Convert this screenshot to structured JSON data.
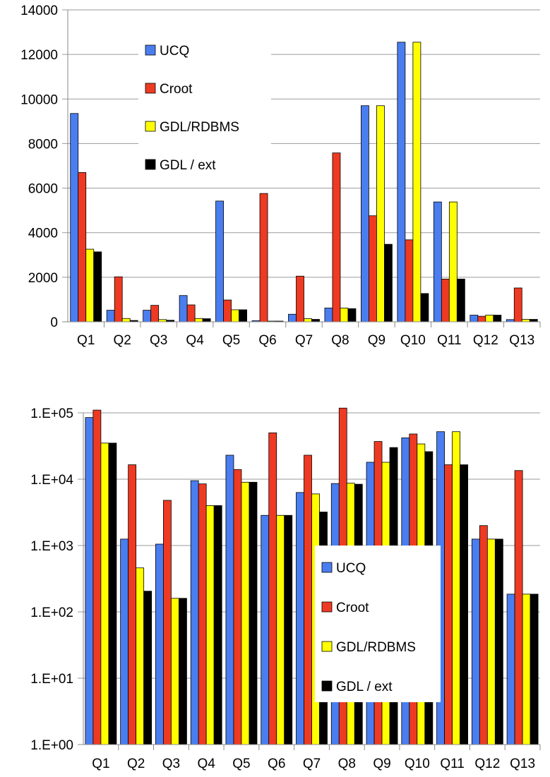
{
  "chart_data": [
    {
      "type": "bar",
      "scale": "linear",
      "categories": [
        "Q1",
        "Q2",
        "Q3",
        "Q4",
        "Q5",
        "Q6",
        "Q7",
        "Q8",
        "Q9",
        "Q10",
        "Q11",
        "Q12",
        "Q13"
      ],
      "series": [
        {
          "name": "UCQ",
          "color": "#4a7ef0",
          "values": [
            9350,
            520,
            520,
            1180,
            5420,
            50,
            340,
            620,
            9700,
            12550,
            5380,
            300,
            100
          ]
        },
        {
          "name": "Croot",
          "color": "#ee3a22",
          "values": [
            6700,
            2020,
            740,
            760,
            980,
            5760,
            2050,
            7580,
            4760,
            3680,
            1920,
            250,
            1520
          ]
        },
        {
          "name": "GDL/RDBMS",
          "color": "#ffff00",
          "values": [
            3260,
            150,
            100,
            150,
            540,
            30,
            140,
            620,
            9700,
            12550,
            5380,
            300,
            110
          ]
        },
        {
          "name": "GDL / ext",
          "color": "#000000",
          "values": [
            3140,
            60,
            70,
            140,
            540,
            30,
            110,
            590,
            3480,
            1270,
            1920,
            300,
            110
          ]
        }
      ],
      "ylim": [
        0,
        14000
      ],
      "yticks": [
        "0",
        "2000",
        "4000",
        "6000",
        "8000",
        "10000",
        "12000",
        "14000"
      ],
      "grid": true,
      "legend_position": "top-left"
    },
    {
      "type": "bar",
      "scale": "log",
      "categories": [
        "Q1",
        "Q2",
        "Q3",
        "Q4",
        "Q5",
        "Q6",
        "Q7",
        "Q8",
        "Q9",
        "Q10",
        "Q11",
        "Q12",
        "Q13"
      ],
      "series": [
        {
          "name": "UCQ",
          "color": "#4a7ef0",
          "values": [
            85000,
            1250,
            1050,
            9500,
            23000,
            2850,
            6300,
            8600,
            18000,
            42000,
            52000,
            1250,
            185
          ]
        },
        {
          "name": "Croot",
          "color": "#ee3a22",
          "values": [
            110000,
            16500,
            4800,
            8500,
            14000,
            50000,
            23000,
            118000,
            37000,
            48000,
            16500,
            2000,
            13500
          ]
        },
        {
          "name": "GDL/RDBMS",
          "color": "#ffff00",
          "values": [
            35000,
            460,
            160,
            4000,
            9000,
            2850,
            6000,
            8700,
            18000,
            34000,
            52000,
            1250,
            185
          ]
        },
        {
          "name": "GDL / ext",
          "color": "#000000",
          "values": [
            35000,
            205,
            160,
            4000,
            9000,
            2850,
            3200,
            8400,
            30000,
            26000,
            16500,
            1250,
            185
          ]
        }
      ],
      "ylim": [
        1,
        100000
      ],
      "yticks": [
        "1.E+00",
        "1.E+01",
        "1.E+02",
        "1.E+03",
        "1.E+04",
        "1.E+05"
      ],
      "grid": true,
      "legend_position": "center-right"
    }
  ]
}
